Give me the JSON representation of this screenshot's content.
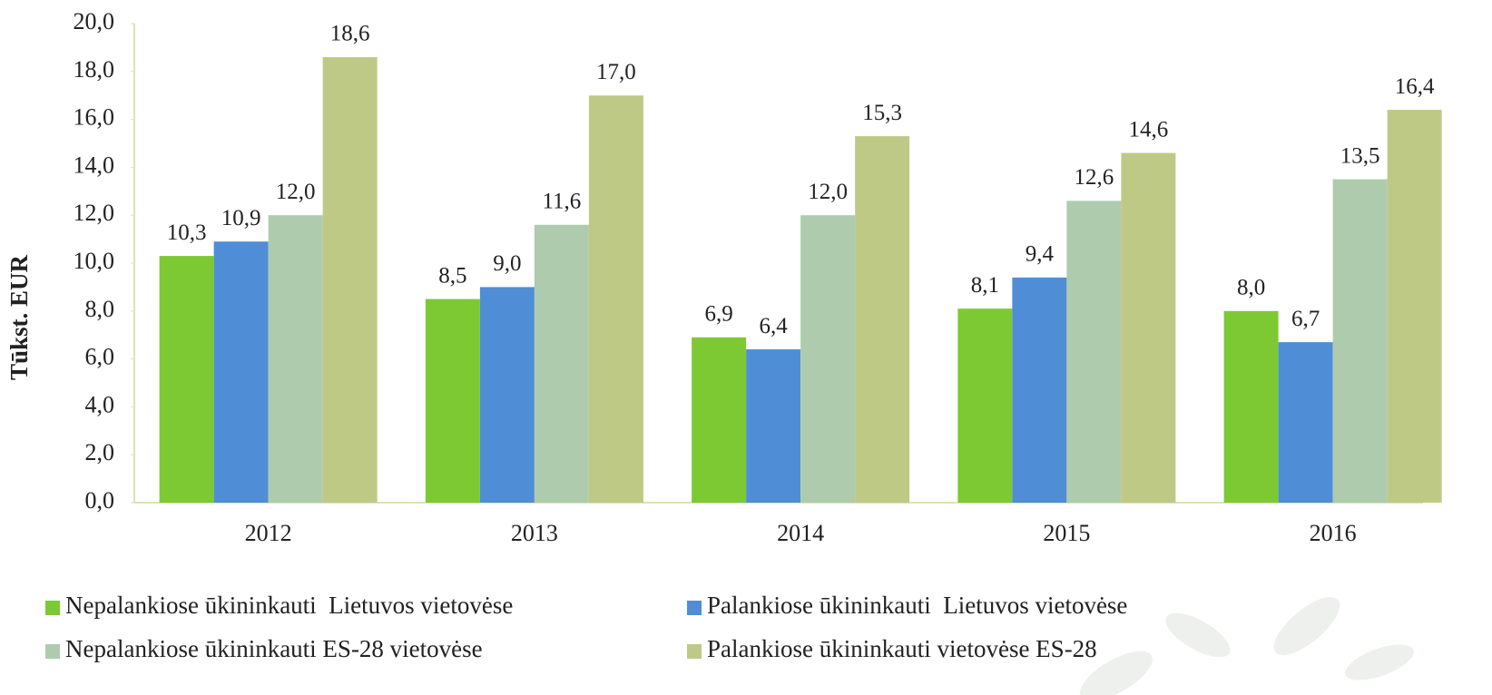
{
  "chart_data": {
    "type": "bar",
    "y_label": "Tūkst. EUR",
    "categories": [
      "2012",
      "2013",
      "2014",
      "2015",
      "2016"
    ],
    "series": [
      {
        "name": "Nepalankiose ūkininkauti  Lietuvos vietovėse",
        "color": "#7dc934",
        "values": [
          10.3,
          8.5,
          6.9,
          8.1,
          8.0
        ],
        "value_labels": [
          "10,3",
          "8,5",
          "6,9",
          "8,1",
          "8,0"
        ]
      },
      {
        "name": "Palankiose ūkininkauti  Lietuvos vietovėse",
        "color": "#4f8ed6",
        "values": [
          10.9,
          9.0,
          6.4,
          9.4,
          6.7
        ],
        "value_labels": [
          "10,9",
          "9,0",
          "6,4",
          "9,4",
          "6,7"
        ]
      },
      {
        "name": "Nepalankiose ūkininkauti ES-28 vietovėse",
        "color": "#aecbae",
        "values": [
          12.0,
          11.6,
          12.0,
          12.6,
          13.5
        ],
        "value_labels": [
          "12,0",
          "11,6",
          "12,0",
          "12,6",
          "13,5"
        ]
      },
      {
        "name": "Palankiose ūkininkauti vietovėse ES-28",
        "color": "#bfc986",
        "values": [
          18.6,
          17.0,
          15.3,
          14.6,
          16.4
        ],
        "value_labels": [
          "18,6",
          "17,0",
          "15,3",
          "14,6",
          "16,4"
        ]
      }
    ],
    "ylim": [
      0,
      20
    ],
    "yticks": [
      {
        "value": 0,
        "label": "0,0"
      },
      {
        "value": 2,
        "label": "2,0"
      },
      {
        "value": 4,
        "label": "4,0"
      },
      {
        "value": 6,
        "label": "6,0"
      },
      {
        "value": 8,
        "label": "8,0"
      },
      {
        "value": 10,
        "label": "10,0"
      },
      {
        "value": 12,
        "label": "12,0"
      },
      {
        "value": 14,
        "label": "14,0"
      },
      {
        "value": 16,
        "label": "16,0"
      },
      {
        "value": 18,
        "label": "18,0"
      },
      {
        "value": 20,
        "label": "20,0"
      }
    ],
    "legend": "bottom"
  }
}
